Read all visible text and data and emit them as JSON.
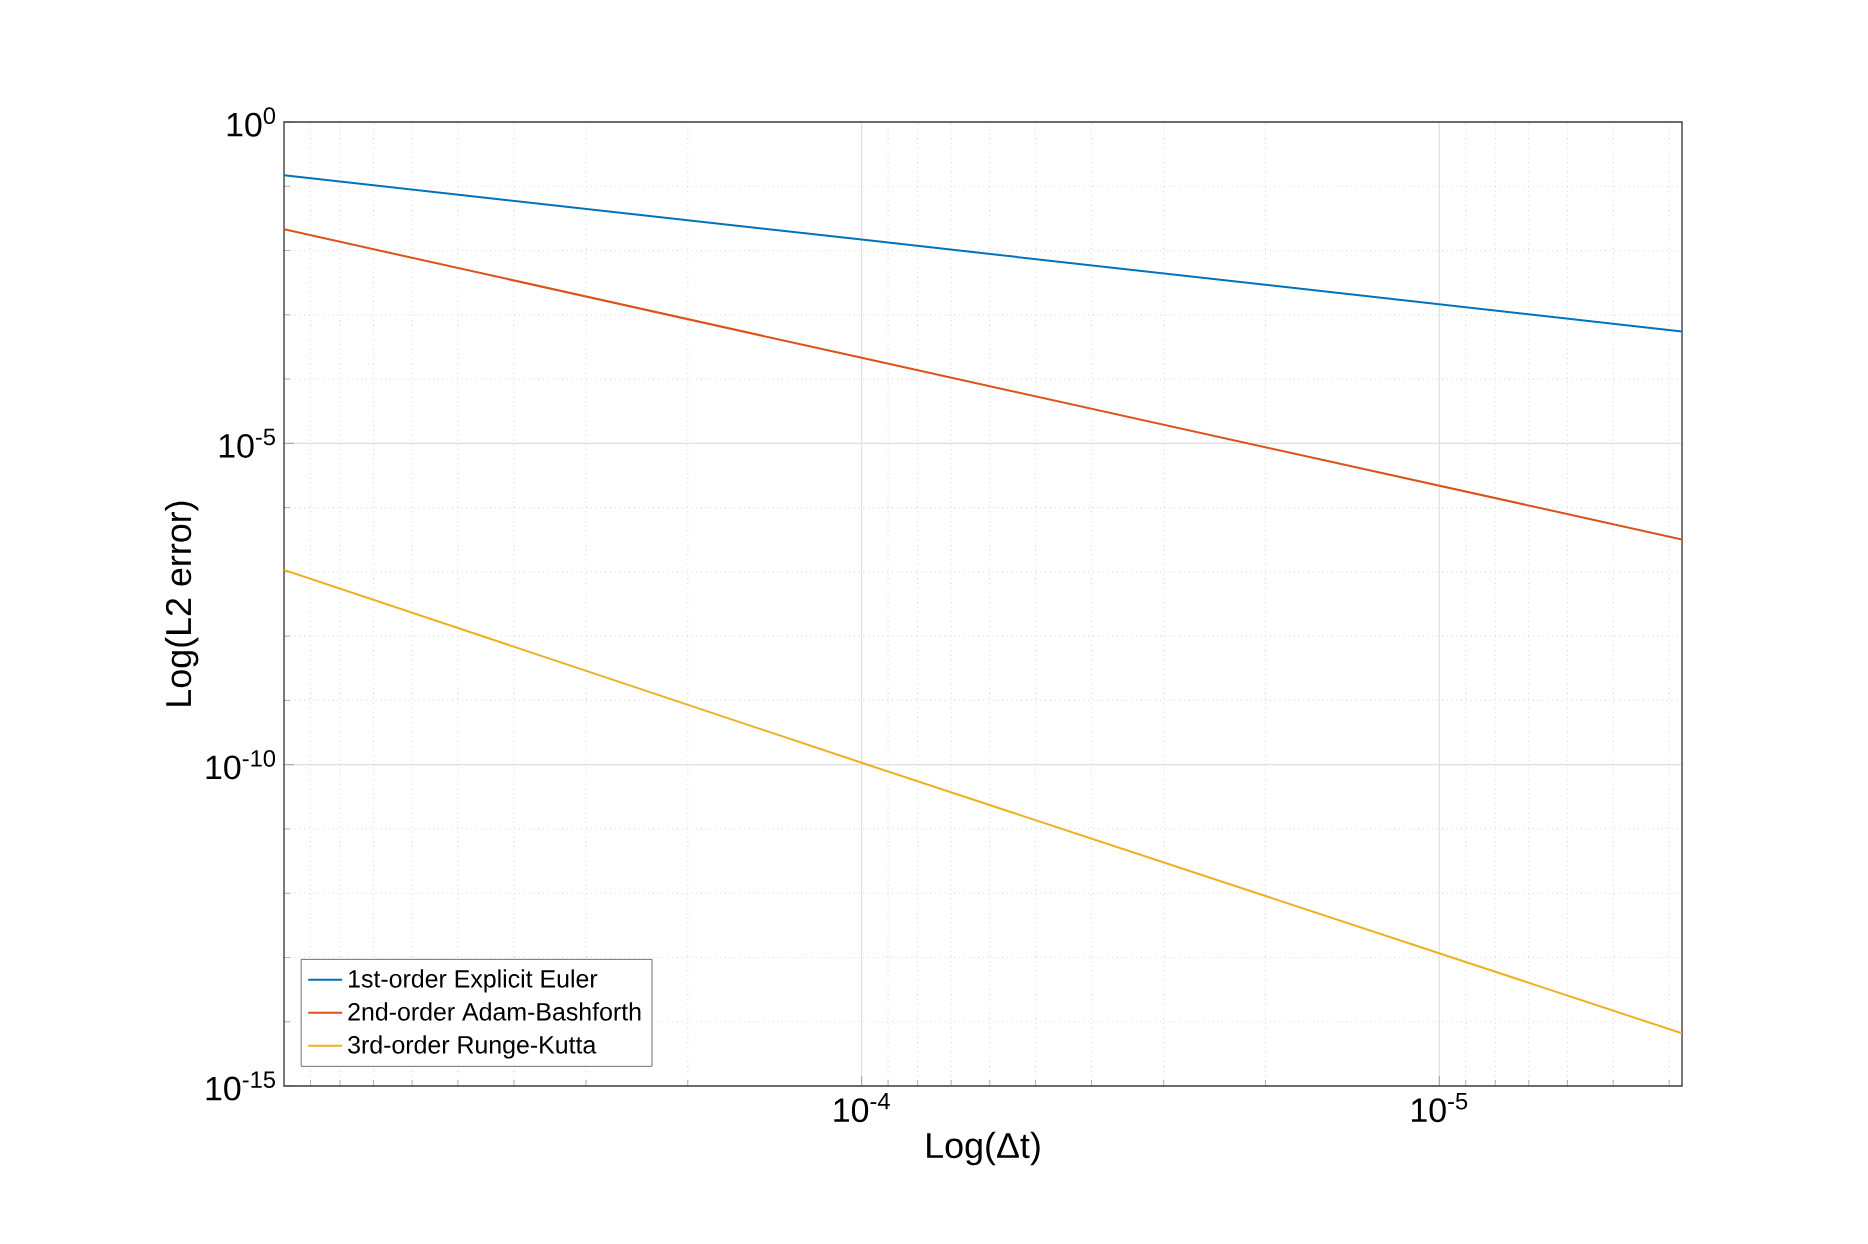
{
  "chart_data": {
    "type": "line",
    "xlabel": "Log(Δt)",
    "ylabel": "Log(L2 error)",
    "log": "xy",
    "grid": true,
    "legend": "bottom left",
    "marker": "none",
    "line_style": "solid",
    "xlim": [
      0.001,
      3.8e-06
    ],
    "ylim": [
      1e-15,
      1
    ],
    "xticks": [
      {
        "value": 0.0009,
        "label": null
      },
      {
        "value": 0.0008,
        "label": null
      },
      {
        "value": 0.0007,
        "label": null
      },
      {
        "value": 0.0006,
        "label": null
      },
      {
        "value": 0.0005,
        "label": null
      },
      {
        "value": 0.0004,
        "label": null
      },
      {
        "value": 0.0003,
        "label": null
      },
      {
        "value": 0.0002,
        "label": null
      },
      {
        "value": 0.0001,
        "label": "10$^{-4}$"
      },
      {
        "value": 9e-05,
        "label": null
      },
      {
        "value": 8e-05,
        "label": null
      },
      {
        "value": 7e-05,
        "label": null
      },
      {
        "value": 6e-05,
        "label": null
      },
      {
        "value": 5e-05,
        "label": null
      },
      {
        "value": 4e-05,
        "label": null
      },
      {
        "value": 3e-05,
        "label": null
      },
      {
        "value": 2e-05,
        "label": null
      },
      {
        "value": 1e-05,
        "label": "10$^{-5}$"
      },
      {
        "value": 9e-06,
        "label": null
      },
      {
        "value": 8e-06,
        "label": null
      },
      {
        "value": 7e-06,
        "label": null
      },
      {
        "value": 6e-06,
        "label": null
      },
      {
        "value": 5e-06,
        "label": null
      },
      {
        "value": 4e-06,
        "label": null
      }
    ],
    "yticks": [
      {
        "value": 1e-15,
        "label": "10$^{-15}$"
      },
      {
        "value": 1e-14,
        "label": null
      },
      {
        "value": 1e-13,
        "label": null
      },
      {
        "value": 1e-12,
        "label": null
      },
      {
        "value": 1e-11,
        "label": null
      },
      {
        "value": 1e-10,
        "label": "10$^{-10}$"
      },
      {
        "value": 1e-09,
        "label": null
      },
      {
        "value": 1e-08,
        "label": null
      },
      {
        "value": 1e-07,
        "label": null
      },
      {
        "value": 1e-06,
        "label": null
      },
      {
        "value": 1e-05,
        "label": "10$^{-5}$"
      },
      {
        "value": 0.0001,
        "label": null
      },
      {
        "value": 0.001,
        "label": null
      },
      {
        "value": 0.01,
        "label": null
      },
      {
        "value": 0.1,
        "label": null
      },
      {
        "value": 1,
        "label": "10$^{0}$"
      }
    ],
    "x": [
      0.001,
      0.0001,
      3.8e-06
    ],
    "series": [
      {
        "name": "1st-order Explicit Euler",
        "color": "#0072bd",
        "values": [
          0.148,
          0.0148,
          0.00055
        ]
      },
      {
        "name": "2nd-order Adam-Bashforth",
        "color": "#d95319",
        "values": [
          0.0214,
          0.000214,
          3.2e-07
        ]
      },
      {
        "name": "3rd-order Runge-Kutta",
        "color": "#edb120",
        "values": [
          1.07e-07,
          1.07e-10,
          6.6e-15
        ]
      }
    ]
  }
}
